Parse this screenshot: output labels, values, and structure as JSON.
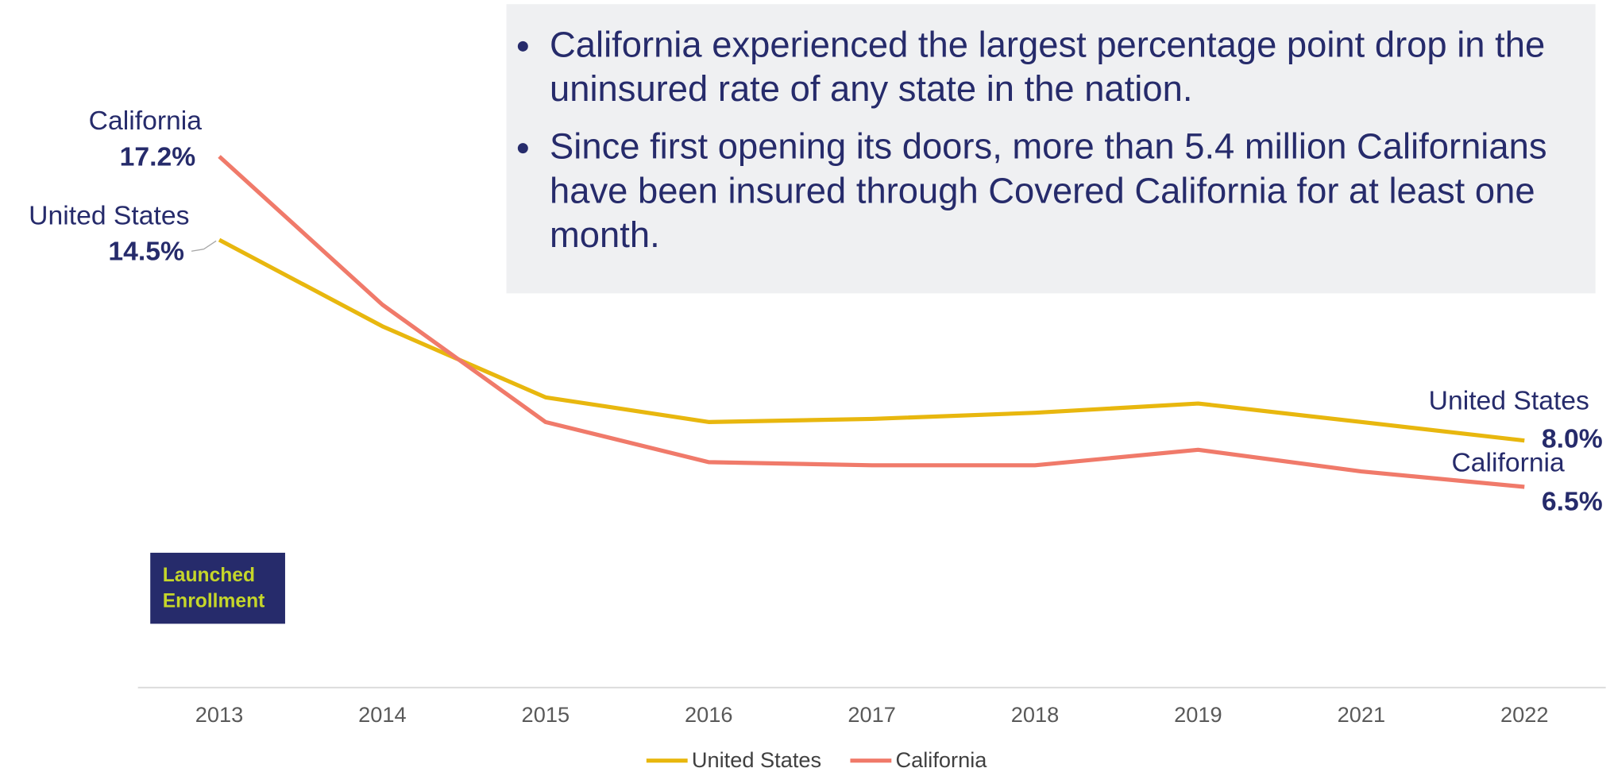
{
  "chart_data": {
    "type": "line",
    "bullets": [
      "California experienced the largest percentage point drop in the uninsured rate of any state in the nation.",
      "Since first opening its doors, more than 5.4 million Californians have been insured through Covered California for at least one month."
    ],
    "annotation": "Launched Enrollment",
    "categories": [
      "2013",
      "2014",
      "2015",
      "2016",
      "2017",
      "2018",
      "2019",
      "2021",
      "2022"
    ],
    "series": [
      {
        "name": "United States",
        "color": "#e8b70e",
        "values": [
          14.5,
          11.7,
          9.4,
          8.6,
          8.7,
          8.9,
          9.2,
          8.6,
          8.0
        ],
        "value_labels": [
          "14.5%",
          null,
          null,
          null,
          null,
          null,
          null,
          null,
          "8.0%"
        ]
      },
      {
        "name": "California",
        "color": "#f07a6a",
        "values": [
          17.2,
          12.4,
          8.6,
          7.3,
          7.2,
          7.2,
          7.7,
          7.0,
          6.5
        ],
        "value_labels": [
          "17.2%",
          null,
          null,
          null,
          null,
          null,
          null,
          null,
          "6.5%"
        ]
      }
    ],
    "ylim": [
      0,
      20
    ],
    "legend": "bottom"
  }
}
